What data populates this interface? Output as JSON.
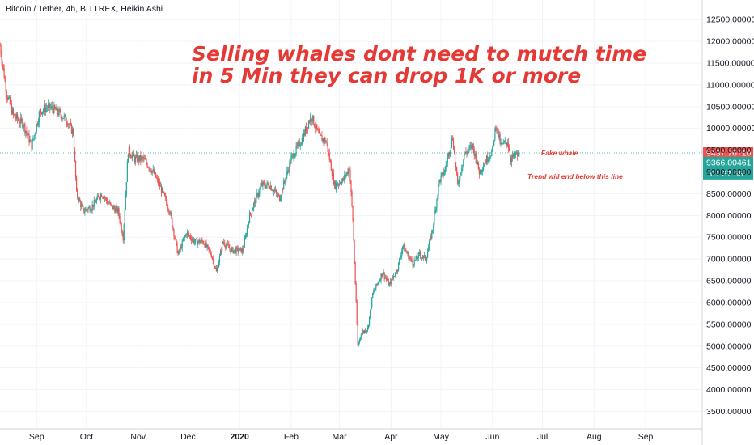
{
  "header": {
    "symbol_line": "Bitcoin / Tether, 4h, BITTREX, Heikin Ashi"
  },
  "annotation": {
    "line1": "Selling whales dont need to mutch time",
    "line2": "in 5 Min they can drop 1K or more",
    "fake_whale": "Fake whale",
    "trend_note": "Trend will end below this line"
  },
  "colors": {
    "up": "#26a69a",
    "down": "#ef5350",
    "annotation": "#e53935",
    "grid": "#f0f3fa"
  },
  "chart_data": {
    "type": "candlestick",
    "title": "",
    "xlabel": "",
    "ylabel": "",
    "ylim": [
      3100,
      12950
    ],
    "yticks": [
      3500,
      4000,
      4500,
      5000,
      5500,
      6000,
      6500,
      7000,
      7500,
      8000,
      8500,
      9000,
      9500,
      10000,
      10500,
      11000,
      11500,
      12000,
      12500
    ],
    "ytick_labels": [
      "3500.00000",
      "4000.00000",
      "4500.00000",
      "5000.00000",
      "5500.00000",
      "6000.00000",
      "6500.00000",
      "7000.00000",
      "7500.00000",
      "8000.00000",
      "8500.00000",
      "9000.00000",
      "9500.00000",
      "10000.00000",
      "10500.00000",
      "11000.00000",
      "11500.00000",
      "12000.00000",
      "12500.00000"
    ],
    "x_ticks": [
      {
        "date": "2019-09-01",
        "label": "Sep",
        "bold": false
      },
      {
        "date": "2019-10-01",
        "label": "Oct",
        "bold": false
      },
      {
        "date": "2019-11-01",
        "label": "Nov",
        "bold": false
      },
      {
        "date": "2019-12-01",
        "label": "Dec",
        "bold": false
      },
      {
        "date": "2020-01-01",
        "label": "2020",
        "bold": true
      },
      {
        "date": "2020-02-01",
        "label": "Feb",
        "bold": false
      },
      {
        "date": "2020-03-01",
        "label": "Mar",
        "bold": false
      },
      {
        "date": "2020-04-01",
        "label": "Apr",
        "bold": false
      },
      {
        "date": "2020-05-01",
        "label": "May",
        "bold": false
      },
      {
        "date": "2020-06-01",
        "label": "Jun",
        "bold": false
      },
      {
        "date": "2020-07-01",
        "label": "Jul",
        "bold": false
      },
      {
        "date": "2020-08-01",
        "label": "Aug",
        "bold": false
      },
      {
        "date": "2020-09-01",
        "label": "Sep",
        "bold": false
      }
    ],
    "xlim": [
      "2019-08-10",
      "2020-10-05"
    ],
    "horizontal_line": {
      "value": 9437.7671,
      "label": "9437.76710"
    },
    "last_price": {
      "value": 9366.00461,
      "label": "9366.00461",
      "countdown": "01:37:58"
    },
    "price_path": [
      {
        "date": "2019-08-10",
        "price": 11900
      },
      {
        "date": "2019-08-14",
        "price": 10800
      },
      {
        "date": "2019-08-18",
        "price": 10300
      },
      {
        "date": "2019-08-24",
        "price": 10100
      },
      {
        "date": "2019-08-29",
        "price": 9600
      },
      {
        "date": "2019-09-03",
        "price": 10400
      },
      {
        "date": "2019-09-08",
        "price": 10500
      },
      {
        "date": "2019-09-13",
        "price": 10400
      },
      {
        "date": "2019-09-19",
        "price": 10200
      },
      {
        "date": "2019-09-23",
        "price": 9900
      },
      {
        "date": "2019-09-25",
        "price": 8500
      },
      {
        "date": "2019-09-29",
        "price": 8100
      },
      {
        "date": "2019-10-04",
        "price": 8200
      },
      {
        "date": "2019-10-10",
        "price": 8500
      },
      {
        "date": "2019-10-16",
        "price": 8200
      },
      {
        "date": "2019-10-20",
        "price": 8100
      },
      {
        "date": "2019-10-23",
        "price": 7500
      },
      {
        "date": "2019-10-26",
        "price": 9500
      },
      {
        "date": "2019-10-30",
        "price": 9300
      },
      {
        "date": "2019-11-04",
        "price": 9300
      },
      {
        "date": "2019-11-10",
        "price": 9000
      },
      {
        "date": "2019-11-15",
        "price": 8600
      },
      {
        "date": "2019-11-20",
        "price": 8100
      },
      {
        "date": "2019-11-25",
        "price": 7100
      },
      {
        "date": "2019-11-30",
        "price": 7600
      },
      {
        "date": "2019-12-05",
        "price": 7400
      },
      {
        "date": "2019-12-10",
        "price": 7400
      },
      {
        "date": "2019-12-15",
        "price": 7100
      },
      {
        "date": "2019-12-18",
        "price": 6700
      },
      {
        "date": "2019-12-22",
        "price": 7400
      },
      {
        "date": "2019-12-27",
        "price": 7200
      },
      {
        "date": "2020-01-03",
        "price": 7200
      },
      {
        "date": "2020-01-07",
        "price": 8000
      },
      {
        "date": "2020-01-14",
        "price": 8700
      },
      {
        "date": "2020-01-19",
        "price": 8700
      },
      {
        "date": "2020-01-25",
        "price": 8400
      },
      {
        "date": "2020-02-01",
        "price": 9300
      },
      {
        "date": "2020-02-08",
        "price": 9800
      },
      {
        "date": "2020-02-13",
        "price": 10300
      },
      {
        "date": "2020-02-18",
        "price": 9800
      },
      {
        "date": "2020-02-22",
        "price": 9700
      },
      {
        "date": "2020-02-27",
        "price": 8700
      },
      {
        "date": "2020-03-03",
        "price": 8800
      },
      {
        "date": "2020-03-07",
        "price": 9100
      },
      {
        "date": "2020-03-09",
        "price": 7900
      },
      {
        "date": "2020-03-12",
        "price": 5000
      },
      {
        "date": "2020-03-14",
        "price": 5300
      },
      {
        "date": "2020-03-18",
        "price": 5400
      },
      {
        "date": "2020-03-21",
        "price": 6200
      },
      {
        "date": "2020-03-27",
        "price": 6700
      },
      {
        "date": "2020-03-31",
        "price": 6400
      },
      {
        "date": "2020-04-05",
        "price": 6800
      },
      {
        "date": "2020-04-08",
        "price": 7300
      },
      {
        "date": "2020-04-14",
        "price": 6900
      },
      {
        "date": "2020-04-18",
        "price": 7100
      },
      {
        "date": "2020-04-22",
        "price": 7000
      },
      {
        "date": "2020-04-26",
        "price": 7700
      },
      {
        "date": "2020-04-30",
        "price": 8800
      },
      {
        "date": "2020-05-03",
        "price": 9000
      },
      {
        "date": "2020-05-08",
        "price": 9800
      },
      {
        "date": "2020-05-11",
        "price": 8700
      },
      {
        "date": "2020-05-15",
        "price": 9400
      },
      {
        "date": "2020-05-20",
        "price": 9600
      },
      {
        "date": "2020-05-24",
        "price": 9000
      },
      {
        "date": "2020-05-27",
        "price": 9200
      },
      {
        "date": "2020-06-01",
        "price": 9500
      },
      {
        "date": "2020-06-03",
        "price": 10100
      },
      {
        "date": "2020-06-06",
        "price": 9600
      },
      {
        "date": "2020-06-10",
        "price": 9700
      },
      {
        "date": "2020-06-12",
        "price": 9300
      },
      {
        "date": "2020-06-15",
        "price": 9400
      },
      {
        "date": "2020-06-17",
        "price": 9366
      }
    ]
  }
}
